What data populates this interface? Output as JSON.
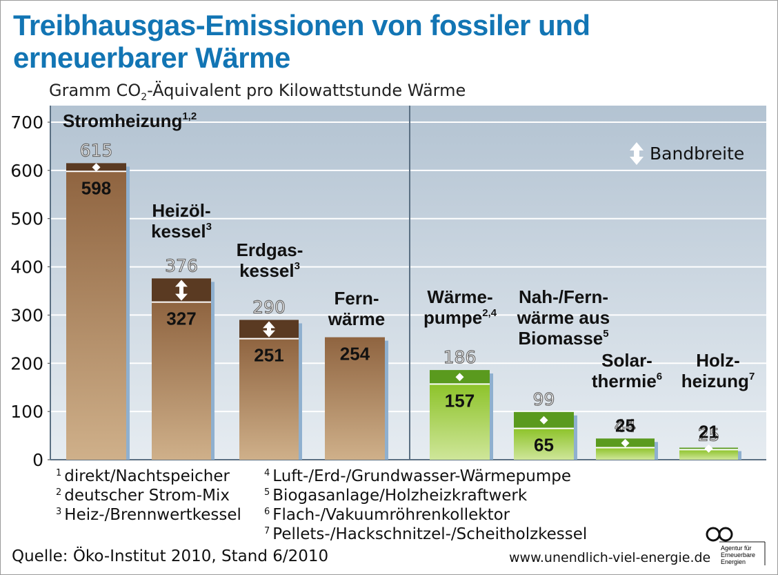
{
  "title_line1": "Treibhausgas-Emissionen von fossiler und",
  "title_line2": "erneuerbarer Wärme",
  "subtitle_pre": "Gramm CO",
  "subtitle_sub": "2",
  "subtitle_post": "-Äquivalent pro Kilowattstunde Wärme",
  "legend_bandbreite": "Bandbreite",
  "footnotes": [
    {
      "num": "1",
      "text": "direkt/Nachtspeicher"
    },
    {
      "num": "2",
      "text": "deutscher Strom-Mix"
    },
    {
      "num": "3",
      "text": "Heiz-/Brennwertkessel"
    },
    {
      "num": "4",
      "text": "Luft-/Erd-/Grundwasser-Wärmepumpe"
    },
    {
      "num": "5",
      "text": "Biogasanlage/Holzheizkraftwerk"
    },
    {
      "num": "6",
      "text": "Flach-/Vakuumröhrenkollektor"
    },
    {
      "num": "7",
      "text": "Pellets-/Hackschnitzel-/Scheitholzkessel"
    }
  ],
  "source": "Quelle: Öko-Institut 2010, Stand 6/2010",
  "website": "www.unendlich-viel-energie.de",
  "logo_text": [
    "Agentur für",
    "Erneuerbare",
    "Energien"
  ],
  "colors": {
    "title": "#1275b4",
    "fossil_bar": "#a57b51",
    "fossil_band": "#5a3a22",
    "renewable_bar": "#9ccb3b",
    "renewable_band": "#5a9a1e",
    "background": "#cfd9e2",
    "shadow": "#8fb0cf"
  },
  "chart_data": {
    "type": "bar",
    "ylim": [
      0,
      700
    ],
    "yticks": [
      0,
      100,
      200,
      300,
      400,
      500,
      600,
      700
    ],
    "grid": true,
    "series": [
      {
        "name_lines": [
          "Stromheizung"
        ],
        "sup": "1,2",
        "group": "fossil",
        "value": 598,
        "max": 615
      },
      {
        "name_lines": [
          "Heizöl-",
          "kessel"
        ],
        "sup": "3",
        "group": "fossil",
        "value": 327,
        "max": 376
      },
      {
        "name_lines": [
          "Erdgas-",
          "kessel"
        ],
        "sup": "3",
        "group": "fossil",
        "value": 251,
        "max": 290
      },
      {
        "name_lines": [
          "Fern-",
          "wärme"
        ],
        "sup": "",
        "group": "fossil",
        "value": 254,
        "max": null
      },
      {
        "name_lines": [
          "Wärme-",
          "pumpe"
        ],
        "sup": "2,4",
        "group": "renewable",
        "value": 157,
        "max": 186
      },
      {
        "name_lines": [
          "Nah-/Fern-",
          "wärme aus",
          "Biomasse"
        ],
        "sup": "5",
        "group": "renewable",
        "value": 65,
        "max": 99
      },
      {
        "name_lines": [
          "Solar-",
          "thermie"
        ],
        "sup": "6",
        "group": "renewable",
        "value": 25,
        "max": 44
      },
      {
        "name_lines": [
          "Holz-",
          "heizung"
        ],
        "sup": "7",
        "group": "renewable",
        "value": 21,
        "max": 25
      }
    ]
  }
}
